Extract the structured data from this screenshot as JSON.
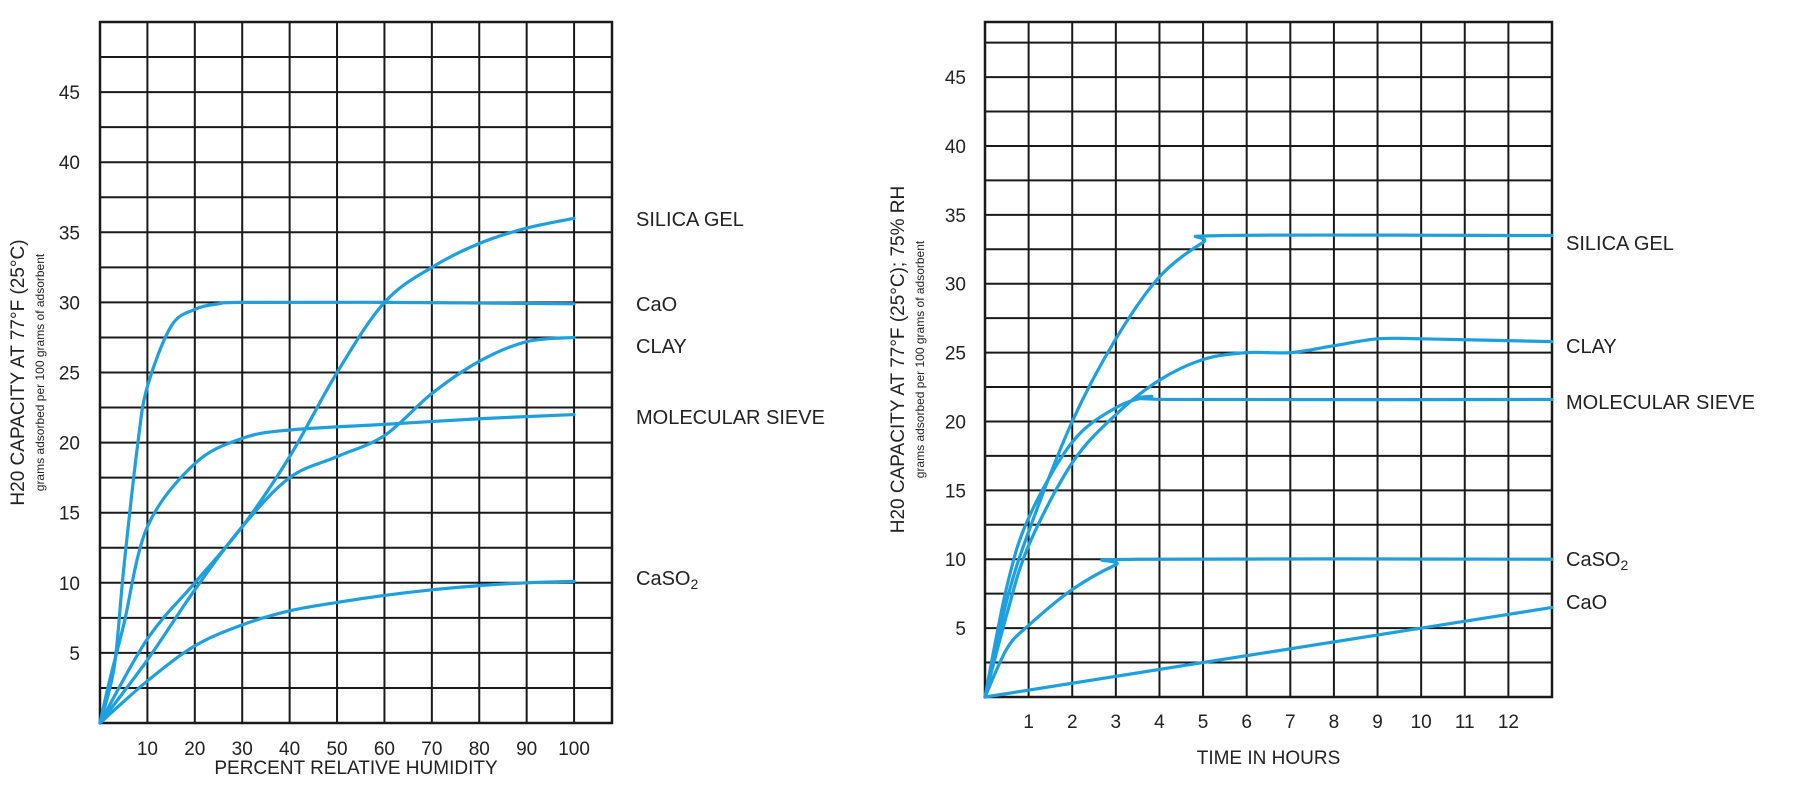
{
  "chart_data": [
    {
      "type": "line",
      "id": "left",
      "xlabel": "PERCENT RELATIVE HUMIDITY",
      "ylabel": "H20 CAPACITY AT 77°F (25°C)",
      "ylabel_sub": "grams adsorbed per 100 grams of adsorbent",
      "xlim": [
        0,
        108
      ],
      "ylim": [
        0,
        50
      ],
      "x_ticks": [
        10,
        20,
        30,
        40,
        50,
        60,
        70,
        80,
        90,
        100
      ],
      "x_tick_labels": [
        "10",
        "20",
        "30",
        "40",
        "50",
        "60",
        "70",
        "80",
        "90",
        "100"
      ],
      "y_ticks": [
        5,
        10,
        15,
        20,
        25,
        30,
        35,
        40,
        45
      ],
      "y_tick_labels": [
        "5",
        "10",
        "15",
        "20",
        "25",
        "30",
        "35",
        "40",
        "45"
      ],
      "series": [
        {
          "name": "SILICA GEL",
          "label": "SILICA GEL",
          "x": [
            0,
            10,
            20,
            30,
            40,
            50,
            60,
            70,
            80,
            90,
            100
          ],
          "y": [
            0,
            6,
            10,
            14,
            19,
            25,
            30,
            32.5,
            34.2,
            35.3,
            36
          ]
        },
        {
          "name": "CaO",
          "label": "CaO",
          "x": [
            0,
            3,
            5,
            8,
            10,
            15,
            20,
            25,
            30,
            60,
            100
          ],
          "y": [
            0,
            4,
            11,
            20,
            24,
            28.3,
            29.5,
            29.9,
            30,
            30,
            29.9
          ]
        },
        {
          "name": "CLAY",
          "label": "CLAY",
          "x": [
            0,
            10,
            20,
            30,
            40,
            50,
            60,
            70,
            80,
            90,
            100
          ],
          "y": [
            0,
            4.5,
            9.5,
            14,
            17.5,
            19,
            20.5,
            23.5,
            25.8,
            27.2,
            27.5
          ]
        },
        {
          "name": "MOLECULAR SIEVE",
          "label": "MOLECULAR SIEVE",
          "x": [
            0,
            2,
            5,
            10,
            20,
            30,
            40,
            60,
            80,
            100
          ],
          "y": [
            0,
            3,
            7,
            14,
            18.5,
            20.3,
            20.9,
            21.3,
            21.7,
            22
          ]
        },
        {
          "name": "CaSO2",
          "label": "CaSO",
          "label_sub": "2",
          "x": [
            0,
            10,
            20,
            30,
            40,
            50,
            60,
            70,
            80,
            90,
            100
          ],
          "y": [
            0,
            3,
            5.5,
            7,
            8,
            8.6,
            9.1,
            9.5,
            9.8,
            10,
            10.1
          ]
        }
      ]
    },
    {
      "type": "line",
      "id": "right",
      "xlabel": "TIME IN HOURS",
      "ylabel": "H20 CAPACITY AT 77°F (25°C); 75% RH",
      "ylabel_sub": "grams adsorbed per 100 grams of adsorbent",
      "xlim": [
        0,
        13
      ],
      "ylim": [
        0,
        49
      ],
      "x_ticks": [
        1,
        2,
        3,
        4,
        5,
        6,
        7,
        8,
        9,
        10,
        11,
        12
      ],
      "x_tick_labels": [
        "1",
        "2",
        "3",
        "4",
        "5",
        "6",
        "7",
        "8",
        "9",
        "10",
        "11",
        "12"
      ],
      "y_ticks": [
        5,
        10,
        15,
        20,
        25,
        30,
        35,
        40,
        45
      ],
      "y_tick_labels": [
        "5",
        "10",
        "15",
        "20",
        "25",
        "30",
        "35",
        "40",
        "45"
      ],
      "series": [
        {
          "name": "SILICA GEL",
          "label": "SILICA GEL",
          "x": [
            0,
            0.5,
            1,
            2,
            3,
            4,
            5,
            5.5,
            13
          ],
          "y": [
            0,
            7,
            12,
            20,
            26,
            30.5,
            33,
            33.5,
            33.5
          ]
        },
        {
          "name": "CLAY",
          "label": "CLAY",
          "x": [
            0,
            0.5,
            1,
            2,
            3,
            4,
            5,
            6,
            7,
            8,
            9,
            10,
            13
          ],
          "y": [
            0,
            6,
            11,
            17,
            20.5,
            23,
            24.5,
            25,
            25,
            25.5,
            26,
            26,
            25.8
          ]
        },
        {
          "name": "MOLECULAR SIEVE",
          "label": "MOLECULAR SIEVE",
          "x": [
            0,
            0.5,
            1,
            2,
            3,
            3.8,
            4.3,
            13
          ],
          "y": [
            0,
            8,
            13,
            18.5,
            21,
            21.8,
            21.6,
            21.6
          ]
        },
        {
          "name": "CaSO2",
          "label": "CaSO",
          "label_sub": "2",
          "x": [
            0,
            0.5,
            1,
            2,
            3,
            3.5,
            13
          ],
          "y": [
            0,
            3.5,
            5.2,
            7.8,
            9.6,
            10,
            10
          ]
        },
        {
          "name": "CaO",
          "label": "CaO",
          "x": [
            0,
            13
          ],
          "y": [
            0,
            6.5
          ]
        }
      ]
    }
  ],
  "colors": {
    "series": "#1ea0e0",
    "grid": "#1a1a1a"
  }
}
